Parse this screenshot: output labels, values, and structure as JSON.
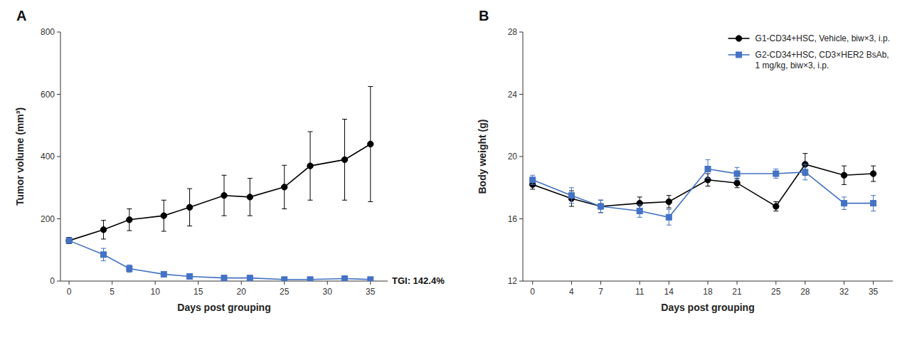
{
  "chart_data": [
    {
      "type": "line",
      "title": "A",
      "x_label": "Days post grouping",
      "y_label": "Tumor volume (mm³)",
      "x": [
        0,
        4,
        7,
        11,
        14,
        18,
        21,
        25,
        28,
        32,
        35
      ],
      "xlim": [
        -1,
        37
      ],
      "xticks": [
        0,
        5,
        10,
        15,
        20,
        25,
        30,
        35
      ],
      "ylim": [
        0,
        800
      ],
      "yticks": [
        0,
        200,
        400,
        600,
        800
      ],
      "grid": false,
      "annotation": "TGI: 142.4%",
      "series": [
        {
          "color": "#000000",
          "marker": "circle",
          "line_style": "solid",
          "values": [
            130,
            165,
            197,
            210,
            237,
            275,
            270,
            302,
            370,
            390,
            440
          ],
          "errors": [
            10,
            30,
            35,
            50,
            60,
            65,
            60,
            70,
            110,
            130,
            185
          ]
        },
        {
          "color": "#4472C4",
          "marker": "square",
          "line_style": "solid",
          "values": [
            130,
            85,
            40,
            22,
            15,
            10,
            10,
            5,
            5,
            8,
            5
          ],
          "errors": [
            8,
            20,
            12,
            8,
            5,
            4,
            4,
            3,
            3,
            4,
            3
          ]
        }
      ]
    },
    {
      "type": "line",
      "title": "B",
      "x_label": "Days post grouping",
      "y_label": "Body weight (g)",
      "x": [
        0,
        4,
        7,
        11,
        14,
        18,
        21,
        25,
        28,
        32,
        35
      ],
      "xlim": [
        -1,
        37
      ],
      "xticks": [
        0,
        4,
        7,
        11,
        14,
        18,
        21,
        25,
        28,
        32,
        35
      ],
      "ylim": [
        12,
        28
      ],
      "yticks": [
        12,
        16,
        20,
        24,
        28
      ],
      "grid": false,
      "legend": "upper right",
      "series": [
        {
          "name": "G1-CD34+HSC, Vehicle, biw×3, i.p.",
          "color": "#000000",
          "marker": "circle",
          "line_style": "solid",
          "values": [
            18.2,
            17.3,
            16.8,
            17.0,
            17.1,
            18.5,
            18.3,
            16.8,
            19.5,
            18.8,
            18.9
          ],
          "errors": [
            0.3,
            0.5,
            0.4,
            0.4,
            0.4,
            0.4,
            0.3,
            0.3,
            0.7,
            0.6,
            0.5
          ]
        },
        {
          "name": "G2-CD34+HSC, CD3×HER2 BsAb,\n1 mg/kg, biw×3, i.p.",
          "color": "#4472C4",
          "marker": "square",
          "line_style": "solid",
          "values": [
            18.5,
            17.5,
            16.8,
            16.5,
            16.1,
            19.2,
            18.9,
            18.9,
            19.0,
            17.0,
            17.0
          ],
          "errors": [
            0.3,
            0.5,
            0.4,
            0.4,
            0.5,
            0.6,
            0.4,
            0.3,
            0.5,
            0.4,
            0.5
          ]
        }
      ]
    }
  ]
}
